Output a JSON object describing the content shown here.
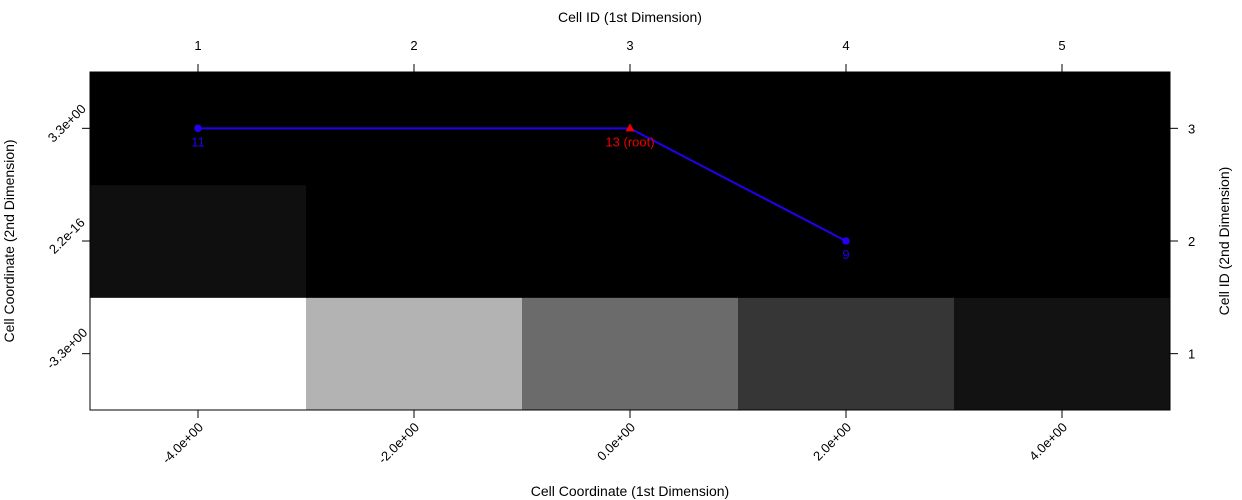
{
  "chart_data": {
    "type": "heatmap",
    "top_axis_title": "Cell ID (1st Dimension)",
    "bottom_axis_title": "Cell Coordinate (1st Dimension)",
    "left_axis_title": "Cell Coordinate (2nd Dimension)",
    "right_axis_title": "Cell ID (2nd Dimension)",
    "top_ticks": [
      "1",
      "2",
      "3",
      "4",
      "5"
    ],
    "bottom_ticks": [
      "-4.0e+00",
      "-2.0e+00",
      "0.0e+00",
      "2.0e+00",
      "4.0e+00"
    ],
    "right_ticks": [
      "1",
      "2",
      "3"
    ],
    "left_ticks": [
      "-3.3e+00",
      "2.2e-16",
      "3.3e+00"
    ],
    "cols": 5,
    "rows": 3,
    "cells": [
      [
        1.0,
        0.7,
        0.42,
        0.21,
        0.07
      ],
      [
        0.06,
        0.0,
        0.0,
        0.0,
        0.0
      ],
      [
        0.0,
        0.0,
        0.0,
        0.0,
        0.0
      ]
    ],
    "path": [
      {
        "col": 1,
        "row": 3,
        "label": "11",
        "color": "#2200ee",
        "marker": "circle"
      },
      {
        "col": 3,
        "row": 3,
        "label": "13 (root)",
        "color": "#ee0000",
        "marker": "triangle"
      },
      {
        "col": 4,
        "row": 2,
        "label": "9",
        "color": "#2200ee",
        "marker": "circle"
      }
    ],
    "line_color": "#2200ee"
  }
}
